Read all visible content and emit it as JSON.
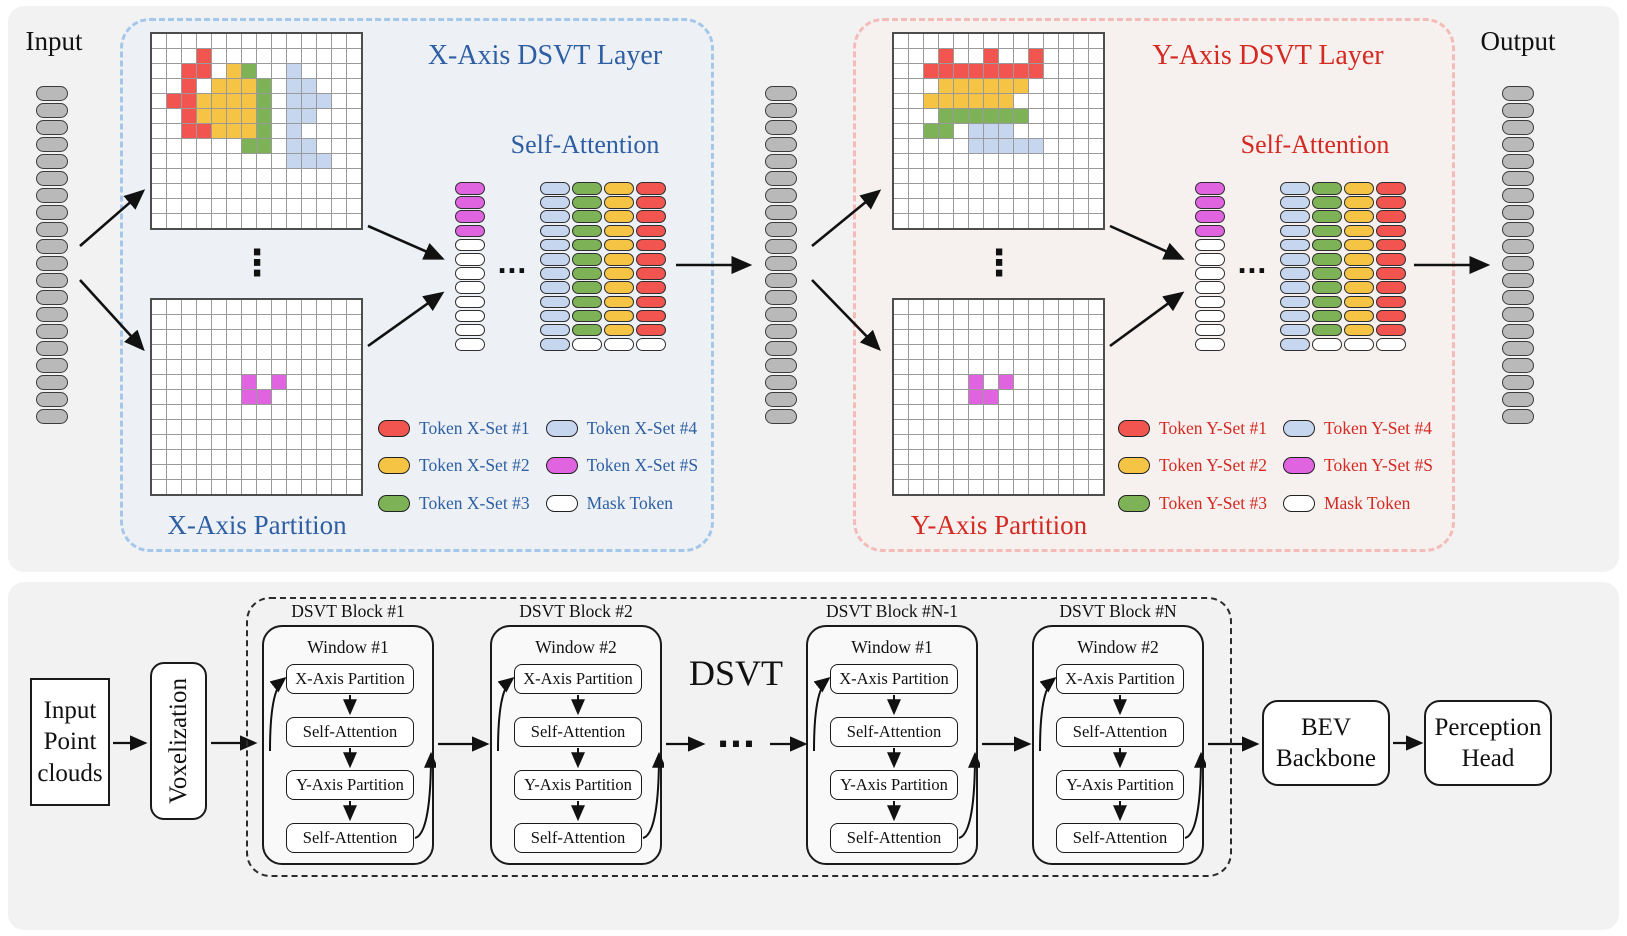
{
  "palette": {
    "red": "#f2544f",
    "yellow": "#f6c445",
    "green": "#7db356",
    "blue_light": "#c7d6ef",
    "magenta": "#e064e0",
    "white": "#ffffff",
    "gray": "#b9b9b9",
    "panel_bg": "#f2f2f3",
    "x_accent": "#2e5fa3",
    "y_accent": "#d42a22",
    "x_border": "#a5c7e9",
    "y_border": "#f3bcb9"
  },
  "io": {
    "input_label": "Input",
    "output_label": "Output",
    "vdots": "⋮",
    "hdots": "...",
    "stack_count": 20
  },
  "x_layer": {
    "title": "X-Axis DSVT Layer",
    "partition_label": "X-Axis Partition",
    "attention_label": "Self-Attention",
    "top_grid": [
      "..............",
      "...r..........",
      "..rr.yg..b....",
      "..r.yyyg.bb...",
      ".rryyyyg.bbb..",
      "..ryyyyg.bb...",
      "..rryyyg.b....",
      "......gg.bb...",
      ".........bbb..",
      "..............",
      "..............",
      "..............",
      ".............."
    ],
    "bottom_grid": [
      "..............",
      "..............",
      "..............",
      "..............",
      "..............",
      "......m.m.....",
      "......mm......",
      "..............",
      "..............",
      "..............",
      "..............",
      "..............",
      ".............."
    ],
    "s_column": {
      "magenta": 4,
      "white": 8
    },
    "set_columns": [
      {
        "color": "blue_light",
        "count": 12,
        "mask": 0
      },
      {
        "color": "green",
        "count": 11,
        "mask": 1
      },
      {
        "color": "yellow",
        "count": 11,
        "mask": 1
      },
      {
        "color": "red",
        "count": 11,
        "mask": 1
      }
    ],
    "legend": [
      {
        "label": "Token X-Set #1",
        "color": "red"
      },
      {
        "label": "Token X-Set #2",
        "color": "yellow"
      },
      {
        "label": "Token X-Set #3",
        "color": "green"
      },
      {
        "label": "Token X-Set #4",
        "color": "blue_light"
      },
      {
        "label": "Token X-Set #S",
        "color": "magenta"
      },
      {
        "label": "Mask Token",
        "color": "white"
      }
    ]
  },
  "y_layer": {
    "title": "Y-Axis DSVT Layer",
    "partition_label": "Y-Axis Partition",
    "attention_label": "Self-Attention",
    "top_grid": [
      "..............",
      "...r..r..r....",
      "..rrrrrrrr....",
      "...yyyyyy.....",
      "..yyyyyy......",
      "...gggggg.....",
      "..gg.bbb......",
      ".....bbbbb....",
      "..............",
      "..............",
      "..............",
      "..............",
      ".............."
    ],
    "bottom_grid": [
      "..............",
      "..............",
      "..............",
      "..............",
      "..............",
      ".....m.m......",
      ".....mm.......",
      "..............",
      "..............",
      "..............",
      "..............",
      "..............",
      ".............."
    ],
    "s_column": {
      "magenta": 4,
      "white": 8
    },
    "set_columns": [
      {
        "color": "blue_light",
        "count": 12,
        "mask": 0
      },
      {
        "color": "green",
        "count": 11,
        "mask": 1
      },
      {
        "color": "yellow",
        "count": 11,
        "mask": 1
      },
      {
        "color": "red",
        "count": 11,
        "mask": 1
      }
    ],
    "legend": [
      {
        "label": "Token Y-Set #1",
        "color": "red"
      },
      {
        "label": "Token Y-Set #2",
        "color": "yellow"
      },
      {
        "label": "Token Y-Set #3",
        "color": "green"
      },
      {
        "label": "Token Y-Set #4",
        "color": "blue_light"
      },
      {
        "label": "Token Y-Set #S",
        "color": "magenta"
      },
      {
        "label": "Mask Token",
        "color": "white"
      }
    ]
  },
  "pipeline": {
    "input_box": "Input Point clouds",
    "voxelization": "Voxelization",
    "dsvt_label": "DSVT",
    "dots": "...",
    "bev": "BEV Backbone",
    "perception": "Perception Head",
    "blocks": [
      {
        "title": "DSVT Block #1",
        "window": "Window #1",
        "steps": [
          "X-Axis Partition",
          "Self-Attention",
          "Y-Axis Partition",
          "Self-Attention"
        ]
      },
      {
        "title": "DSVT Block #2",
        "window": "Window #2",
        "steps": [
          "X-Axis Partition",
          "Self-Attention",
          "Y-Axis Partition",
          "Self-Attention"
        ]
      },
      {
        "title": "DSVT Block #N-1",
        "window": "Window #1",
        "steps": [
          "X-Axis Partition",
          "Self-Attention",
          "Y-Axis Partition",
          "Self-Attention"
        ]
      },
      {
        "title": "DSVT Block #N",
        "window": "Window #2",
        "steps": [
          "X-Axis Partition",
          "Self-Attention",
          "Y-Axis Partition",
          "Self-Attention"
        ]
      }
    ]
  }
}
